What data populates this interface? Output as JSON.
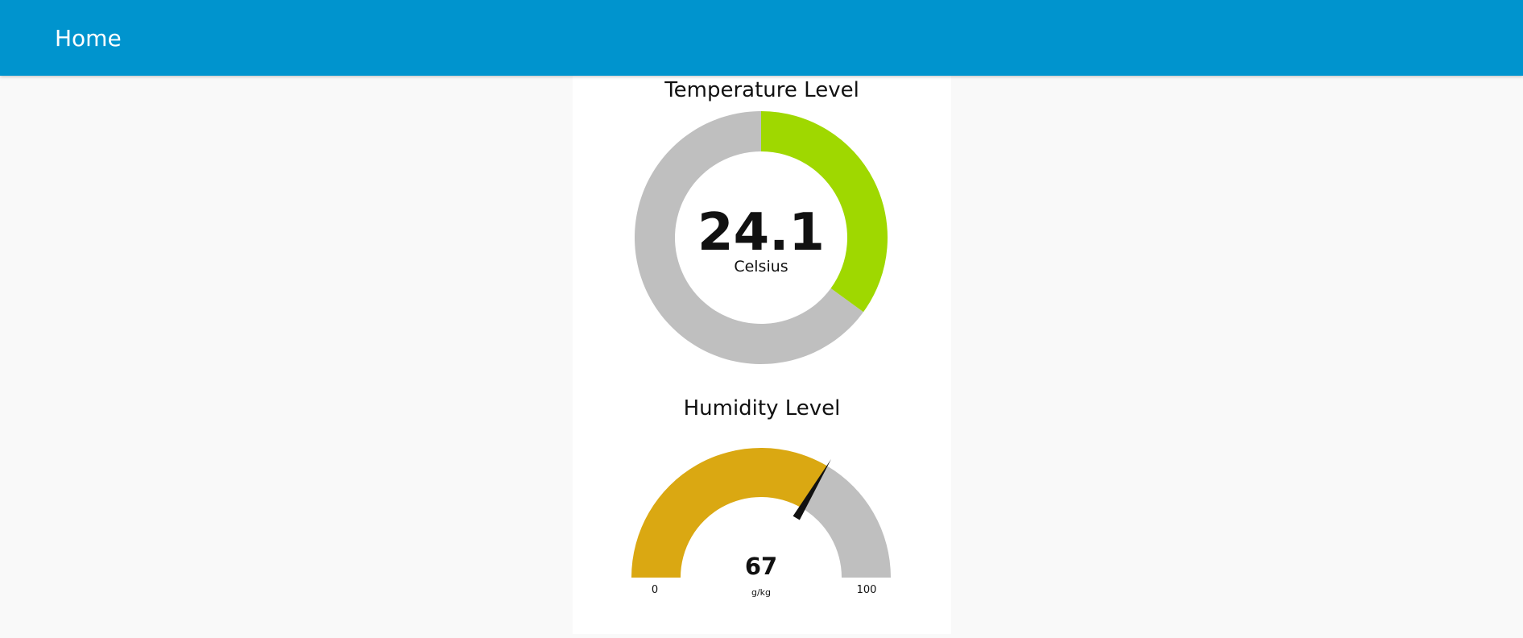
{
  "header": {
    "title": "Home"
  },
  "temperature": {
    "title": "Temperature Level",
    "value": "24.1",
    "unit": "Celsius",
    "fill_fraction": 0.35,
    "fill_color": "#9fd800",
    "track_color": "#bfbfbf"
  },
  "humidity": {
    "title": "Humidity Level",
    "value": "67",
    "unit": "g/kg",
    "min": "0",
    "max": "100",
    "fill_color": "#daa812",
    "track_color": "#bfbfbf",
    "needle_color": "#111111"
  }
}
